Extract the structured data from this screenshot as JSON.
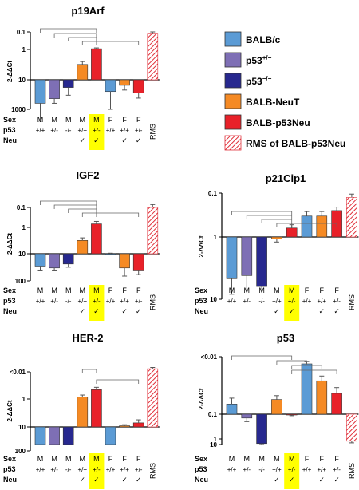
{
  "chart_data": [
    {
      "type": "bar",
      "title": "p19Arf",
      "ylabel": "2-ΔΔCt",
      "yscale": "log",
      "ylim": [
        0.1,
        1000
      ],
      "yticks": [
        "0.1",
        "1",
        "10",
        "1000"
      ],
      "categories": [
        {
          "sex": "M",
          "p53": "+/+",
          "neu": ""
        },
        {
          "sex": "M",
          "p53": "+/-",
          "neu": ""
        },
        {
          "sex": "M",
          "p53": "-/-",
          "neu": ""
        },
        {
          "sex": "M",
          "p53": "+/+",
          "neu": "✓"
        },
        {
          "sex": "M",
          "p53": "+/-",
          "neu": "✓"
        },
        {
          "sex": "F",
          "p53": "+/+",
          "neu": ""
        },
        {
          "sex": "F",
          "p53": "+/+",
          "neu": "✓"
        },
        {
          "sex": "F",
          "p53": "+/-",
          "neu": "✓"
        },
        {
          "sex": "RMS",
          "p53": "",
          "neu": ""
        }
      ],
      "values": [
        0.16,
        0.23,
        0.55,
        3.2,
        12,
        0.4,
        0.65,
        0.36,
        700
      ],
      "errors": [
        0.12,
        0.07,
        0.25,
        0.8,
        3,
        0.3,
        0.2,
        0.12,
        300
      ],
      "colors": [
        "#5b9bd5",
        "#7e6fb5",
        "#27288f",
        "#f58a24",
        "#e82129",
        "#5b9bd5",
        "#f58a24",
        "#e82129",
        "hatch"
      ]
    },
    {
      "type": "bar",
      "title": "IGF2",
      "ylabel": "2-ΔΔCt",
      "yscale": "log",
      "ylim": [
        0.1,
        100
      ],
      "yticks": [
        "0.1",
        "1",
        "10",
        "100"
      ],
      "categories": [
        {
          "sex": "M",
          "p53": "+/+",
          "neu": ""
        },
        {
          "sex": "M",
          "p53": "+/-",
          "neu": ""
        },
        {
          "sex": "M",
          "p53": "-/-",
          "neu": ""
        },
        {
          "sex": "M",
          "p53": "+/+",
          "neu": "✓"
        },
        {
          "sex": "M",
          "p53": "+/-",
          "neu": "✓"
        },
        {
          "sex": "F",
          "p53": "+/+",
          "neu": ""
        },
        {
          "sex": "F",
          "p53": "+/+",
          "neu": "✓"
        },
        {
          "sex": "F",
          "p53": "+/-",
          "neu": "✓"
        },
        {
          "sex": "RMS",
          "p53": "",
          "neu": ""
        }
      ],
      "values": [
        0.35,
        0.3,
        0.42,
        3.2,
        15,
        1.0,
        0.3,
        0.25,
        100
      ],
      "errors": [
        0.1,
        0.05,
        0.1,
        0.8,
        5,
        0.05,
        0.15,
        0.08,
        40
      ],
      "colors": [
        "#5b9bd5",
        "#7e6fb5",
        "#27288f",
        "#f58a24",
        "#e82129",
        "#5b9bd5",
        "#f58a24",
        "#e82129",
        "hatch"
      ]
    },
    {
      "type": "bar",
      "title": "HER-2",
      "ylabel": "2-ΔΔCt",
      "yscale": "log",
      "ylim": [
        0.01,
        100
      ],
      "yticks": [
        "<0.01",
        "1",
        "10",
        "100"
      ],
      "categories": [
        {
          "sex": "M",
          "p53": "+/+",
          "neu": ""
        },
        {
          "sex": "M",
          "p53": "+/-",
          "neu": ""
        },
        {
          "sex": "M",
          "p53": "-/-",
          "neu": ""
        },
        {
          "sex": "M",
          "p53": "+/+",
          "neu": "✓"
        },
        {
          "sex": "M",
          "p53": "+/-",
          "neu": "✓"
        },
        {
          "sex": "F",
          "p53": "+/+",
          "neu": ""
        },
        {
          "sex": "F",
          "p53": "+/+",
          "neu": "✓"
        },
        {
          "sex": "F",
          "p53": "+/-",
          "neu": "✓"
        },
        {
          "sex": "RMS",
          "p53": "",
          "neu": ""
        }
      ],
      "values": [
        0.01,
        0.01,
        0.01,
        12,
        22,
        0.01,
        1.1,
        1.4,
        130
      ],
      "errors": [
        0,
        0,
        0,
        2,
        5,
        0,
        0.1,
        0.4,
        15
      ],
      "colors": [
        "#5b9bd5",
        "#7e6fb5",
        "#27288f",
        "#f58a24",
        "#e82129",
        "#5b9bd5",
        "#f58a24",
        "#e82129",
        "hatch"
      ]
    },
    {
      "type": "bar",
      "title": "p21Cip1",
      "ylabel": "2-ΔΔCt",
      "yscale": "log",
      "ylim": [
        0.1,
        10
      ],
      "yticks": [
        "0.1",
        "1",
        "10"
      ],
      "categories": [
        {
          "sex": "M",
          "p53": "+/+",
          "neu": ""
        },
        {
          "sex": "M",
          "p53": "+/-",
          "neu": ""
        },
        {
          "sex": "M",
          "p53": "-/-",
          "neu": ""
        },
        {
          "sex": "M",
          "p53": "+/+",
          "neu": "✓"
        },
        {
          "sex": "M",
          "p53": "+/-",
          "neu": "✓"
        },
        {
          "sex": "F",
          "p53": "+/+",
          "neu": ""
        },
        {
          "sex": "F",
          "p53": "+/+",
          "neu": "✓"
        },
        {
          "sex": "F",
          "p53": "+/-",
          "neu": "✓"
        },
        {
          "sex": "RMS",
          "p53": "",
          "neu": ""
        }
      ],
      "values": [
        0.22,
        0.24,
        0.16,
        0.93,
        1.6,
        3.0,
        3.0,
        4.0,
        8.0
      ],
      "errors": [
        0.1,
        0.1,
        0.02,
        0.1,
        0.3,
        0.8,
        0.8,
        0.8,
        1.5
      ],
      "colors": [
        "#5b9bd5",
        "#7e6fb5",
        "#27288f",
        "#f58a24",
        "#e82129",
        "#5b9bd5",
        "#f58a24",
        "#e82129",
        "hatch"
      ]
    },
    {
      "type": "bar",
      "title": "p53",
      "ylabel": "2-ΔΔCt",
      "yscale": "log",
      "ylim": [
        0.01,
        10
      ],
      "yticks": [
        "<0.01",
        "0.1",
        "1",
        "10"
      ],
      "categories": [
        {
          "sex": "M",
          "p53": "+/+",
          "neu": ""
        },
        {
          "sex": "M",
          "p53": "+/-",
          "neu": ""
        },
        {
          "sex": "M",
          "p53": "-/-",
          "neu": ""
        },
        {
          "sex": "M",
          "p53": "+/+",
          "neu": "✓"
        },
        {
          "sex": "M",
          "p53": "+/-",
          "neu": "✓"
        },
        {
          "sex": "F",
          "p53": "+/+",
          "neu": ""
        },
        {
          "sex": "F",
          "p53": "+/+",
          "neu": "✓"
        },
        {
          "sex": "F",
          "p53": "+/-",
          "neu": "✓"
        },
        {
          "sex": "RMS",
          "p53": "",
          "neu": ""
        }
      ],
      "values": [
        1.5,
        0.7,
        0.015,
        1.8,
        0.95,
        7.5,
        3.8,
        2.3,
        0.04
      ],
      "errors": [
        0.4,
        0.2,
        0.005,
        0.3,
        0.08,
        0.8,
        0.8,
        0.6,
        0.02
      ],
      "colors": [
        "#5b9bd5",
        "#7e6fb5",
        "#27288f",
        "#f58a24",
        "#e82129",
        "#5b9bd5",
        "#f58a24",
        "#e82129",
        "hatch"
      ]
    }
  ],
  "legend": {
    "items": [
      {
        "label": "BALB/c",
        "sup": "",
        "color": "#5b9bd5"
      },
      {
        "label": "p53",
        "sup": "+/−",
        "color": "#7e6fb5"
      },
      {
        "label": "p53",
        "sup": "−/−",
        "color": "#27288f"
      },
      {
        "label": "BALB-NeuT",
        "sup": "",
        "color": "#f58a24"
      },
      {
        "label": "BALB-p53Neu",
        "sup": "",
        "color": "#e82129"
      },
      {
        "label": "RMS of BALB-p53Neu",
        "sup": "",
        "color": "hatch"
      }
    ]
  },
  "row_labels": {
    "sex": "Sex",
    "p53": "p53",
    "neu": "Neu"
  },
  "colors": {
    "highlight": "#ffff00",
    "hatch": "#e0303a"
  }
}
